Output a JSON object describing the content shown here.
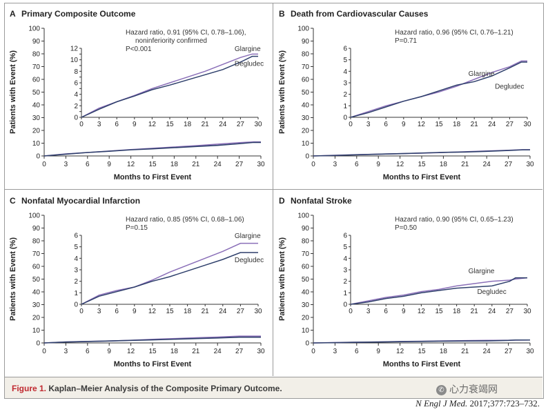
{
  "figure": {
    "caption_label": "Figure 1.",
    "caption_text": "Kaplan–Meier Analysis of the Composite Primary Outcome.",
    "citation_journal": "N Engl J Med.",
    "citation_detail": "2017;377:723–732.",
    "watermark": "心力衰竭网"
  },
  "colors": {
    "glargine": "#8a6fb8",
    "degludec": "#2e3f6b",
    "axis": "#333333"
  },
  "chart_data": [
    {
      "type": "line",
      "panel_letter": "A",
      "title": "Primary Composite Outcome",
      "xlabel": "Months to First Event",
      "ylabel": "Patients with Event (%)",
      "xlim": [
        0,
        30
      ],
      "ylim": [
        0,
        100
      ],
      "xticks": [
        0,
        3,
        6,
        9,
        12,
        15,
        18,
        21,
        24,
        27,
        30
      ],
      "yticks": [
        0,
        10,
        20,
        30,
        40,
        50,
        60,
        70,
        80,
        90,
        100
      ],
      "annotation_lines": [
        "Hazard ratio, 0.91 (95% CI, 0.78–1.06),",
        "noninferiority confirmed",
        "P<0.001"
      ],
      "inset": {
        "ylim": [
          0,
          12
        ],
        "yticks": [
          0,
          1,
          2,
          3,
          4,
          5,
          6,
          7,
          8,
          9,
          10,
          11,
          12
        ],
        "yticklabels": [
          "0",
          "",
          "2",
          "",
          "4",
          "",
          "6",
          "",
          "8",
          "",
          "10",
          "",
          "12"
        ],
        "xticks": [
          0,
          3,
          6,
          9,
          12,
          15,
          18,
          21,
          24,
          27,
          30
        ]
      },
      "series": [
        {
          "name": "Glargine",
          "x": [
            0,
            3,
            6,
            9,
            12,
            15,
            18,
            21,
            24,
            27,
            29,
            30
          ],
          "y": [
            0,
            1.6,
            2.7,
            3.8,
            5.0,
            6.0,
            7.0,
            8.0,
            9.2,
            10.4,
            11.0,
            11.0
          ]
        },
        {
          "name": "Degludec",
          "x": [
            0,
            3,
            6,
            9,
            12,
            15,
            18,
            21,
            24,
            27,
            29,
            30
          ],
          "y": [
            0,
            1.4,
            2.7,
            3.7,
            4.8,
            5.6,
            6.5,
            7.4,
            8.3,
            9.6,
            10.6,
            10.6
          ]
        }
      ]
    },
    {
      "type": "line",
      "panel_letter": "B",
      "title": "Death from Cardiovascular Causes",
      "xlabel": "Months to First Event",
      "ylabel": "Patients with Event (%)",
      "xlim": [
        0,
        30
      ],
      "ylim": [
        0,
        100
      ],
      "xticks": [
        0,
        3,
        6,
        9,
        12,
        15,
        18,
        21,
        24,
        27,
        30
      ],
      "yticks": [
        0,
        10,
        20,
        30,
        40,
        50,
        60,
        70,
        80,
        90,
        100
      ],
      "annotation_lines": [
        "Hazard ratio, 0.96 (95% CI, 0.76–1.21)",
        "P=0.71"
      ],
      "inset": {
        "ylim": [
          0,
          6
        ],
        "yticks": [
          0,
          1,
          2,
          3,
          4,
          5,
          6
        ],
        "yticklabels": [
          "0",
          "1",
          "2",
          "3",
          "4",
          "5",
          "6"
        ],
        "xticks": [
          0,
          3,
          6,
          9,
          12,
          15,
          18,
          21,
          24,
          27,
          30
        ]
      },
      "series": [
        {
          "name": "Glargine",
          "x": [
            0,
            3,
            6,
            9,
            12,
            15,
            18,
            21,
            24,
            27,
            29,
            30
          ],
          "y": [
            0,
            0.5,
            1.0,
            1.4,
            1.8,
            2.2,
            2.7,
            3.3,
            3.9,
            4.4,
            4.9,
            4.9
          ]
        },
        {
          "name": "Degludec",
          "x": [
            0,
            3,
            6,
            9,
            12,
            15,
            18,
            21,
            24,
            27,
            29,
            30
          ],
          "y": [
            0,
            0.4,
            0.9,
            1.4,
            1.8,
            2.3,
            2.8,
            3.1,
            3.6,
            4.3,
            4.8,
            4.8
          ]
        }
      ]
    },
    {
      "type": "line",
      "panel_letter": "C",
      "title": "Nonfatal Myocardial Infarction",
      "xlabel": "Months to First Event",
      "ylabel": "Patients with Event (%)",
      "xlim": [
        0,
        30
      ],
      "ylim": [
        0,
        100
      ],
      "xticks": [
        0,
        3,
        6,
        9,
        12,
        15,
        18,
        21,
        24,
        27,
        30
      ],
      "yticks": [
        0,
        10,
        20,
        30,
        40,
        50,
        60,
        70,
        80,
        90,
        100
      ],
      "annotation_lines": [
        "Hazard ratio, 0.85 (95% CI, 0.68–1.06)",
        "P=0.15"
      ],
      "inset": {
        "ylim": [
          0,
          6
        ],
        "yticks": [
          0,
          1,
          2,
          3,
          4,
          5,
          6
        ],
        "yticklabels": [
          "0",
          "1",
          "2",
          "3",
          "4",
          "5",
          "6"
        ],
        "xticks": [
          0,
          3,
          6,
          9,
          12,
          15,
          18,
          21,
          24,
          27,
          30
        ]
      },
      "series": [
        {
          "name": "Glargine",
          "x": [
            0,
            3,
            6,
            9,
            12,
            15,
            18,
            21,
            24,
            27,
            30
          ],
          "y": [
            0,
            0.8,
            1.2,
            1.5,
            2.1,
            2.8,
            3.4,
            4.0,
            4.6,
            5.3,
            5.3
          ]
        },
        {
          "name": "Degludec",
          "x": [
            0,
            3,
            6,
            9,
            12,
            15,
            18,
            21,
            24,
            27,
            30
          ],
          "y": [
            0,
            0.7,
            1.1,
            1.5,
            2.0,
            2.4,
            2.9,
            3.4,
            3.9,
            4.5,
            4.5
          ]
        }
      ]
    },
    {
      "type": "line",
      "panel_letter": "D",
      "title": "Nonfatal Stroke",
      "xlabel": "Months to First Event",
      "ylabel": "Patients with Event (%)",
      "xlim": [
        0,
        30
      ],
      "ylim": [
        0,
        100
      ],
      "xticks": [
        0,
        3,
        6,
        9,
        12,
        15,
        18,
        21,
        24,
        27,
        30
      ],
      "yticks": [
        0,
        10,
        20,
        30,
        40,
        50,
        60,
        70,
        80,
        90,
        100
      ],
      "annotation_lines": [
        "Hazard ratio, 0.90 (95% CI, 0.65–1.23)",
        "P=0.50"
      ],
      "inset": {
        "ylim": [
          0,
          6
        ],
        "yticks": [
          0,
          1,
          2,
          3,
          4,
          5,
          6
        ],
        "yticklabels": [
          "0",
          "1",
          "2",
          "3",
          "4",
          "5",
          "6"
        ],
        "xticks": [
          0,
          3,
          6,
          9,
          12,
          15,
          18,
          21,
          24,
          27,
          30
        ]
      },
      "series": [
        {
          "name": "Glargine",
          "x": [
            0,
            3,
            6,
            9,
            12,
            15,
            18,
            21,
            24,
            27,
            28,
            30
          ],
          "y": [
            0,
            0.3,
            0.6,
            0.8,
            1.1,
            1.3,
            1.6,
            1.8,
            2.0,
            2.1,
            2.2,
            2.3
          ]
        },
        {
          "name": "Degludec",
          "x": [
            0,
            3,
            6,
            9,
            12,
            15,
            18,
            21,
            24,
            27,
            28,
            30
          ],
          "y": [
            0,
            0.2,
            0.5,
            0.7,
            1.0,
            1.2,
            1.4,
            1.5,
            1.6,
            2.0,
            2.3,
            2.3
          ]
        }
      ]
    }
  ]
}
